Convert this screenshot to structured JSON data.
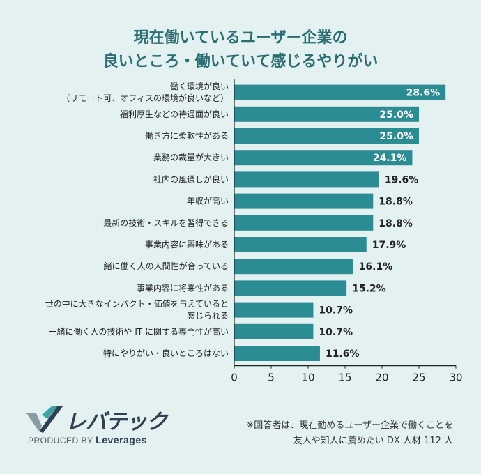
{
  "title_lines": [
    "現在働いているユーザー企業の",
    "良いところ・働いていて感じるやりがい"
  ],
  "brand": {
    "logo_text": "レバテック",
    "produced_by": "PRODUCED BY",
    "company": "Leverages"
  },
  "note_lines": [
    "※回答者は、現在勤めるユーザー企業で働くことを",
    "友人や知人に薦めたい DX 人材 112 人"
  ],
  "colors": {
    "bar": "#2c8c93",
    "title": "#2a6e73",
    "background": "#e3f1f1"
  },
  "chart_data": {
    "type": "bar",
    "orientation": "horizontal",
    "categories": [
      [
        "働く環境が良い",
        "（リモート可、オフィスの環境が良いなど）"
      ],
      [
        "福利厚生などの待遇面が良い"
      ],
      [
        "働き方に柔軟性がある"
      ],
      [
        "業務の裁量が大きい"
      ],
      [
        "社内の風通しが良い"
      ],
      [
        "年収が高い"
      ],
      [
        "最新の技術・スキルを習得できる"
      ],
      [
        "事業内容に興味がある"
      ],
      [
        "一緒に働く人の人間性が合っている"
      ],
      [
        "事業内容に将来性がある"
      ],
      [
        "世の中に大きなインパクト・価値を与えていると",
        "感じられる"
      ],
      [
        "一緒に働く人の技術や IT に関する専門性が高い"
      ],
      [
        "特にやりがい・良いところはない"
      ]
    ],
    "values": [
      28.6,
      25.0,
      25.0,
      24.1,
      19.6,
      18.8,
      18.8,
      17.9,
      16.1,
      15.2,
      10.7,
      10.7,
      11.6
    ],
    "value_labels": [
      "28.6%",
      "25.0%",
      "25.0%",
      "24.1%",
      "19.6%",
      "18.8%",
      "18.8%",
      "17.9%",
      "16.1%",
      "15.2%",
      "10.7%",
      "10.7%",
      "11.6%"
    ],
    "xlim": [
      0,
      30
    ],
    "xticks": [
      0,
      5,
      10,
      15,
      20,
      25,
      30
    ],
    "xlabel": "",
    "ylabel": ""
  }
}
